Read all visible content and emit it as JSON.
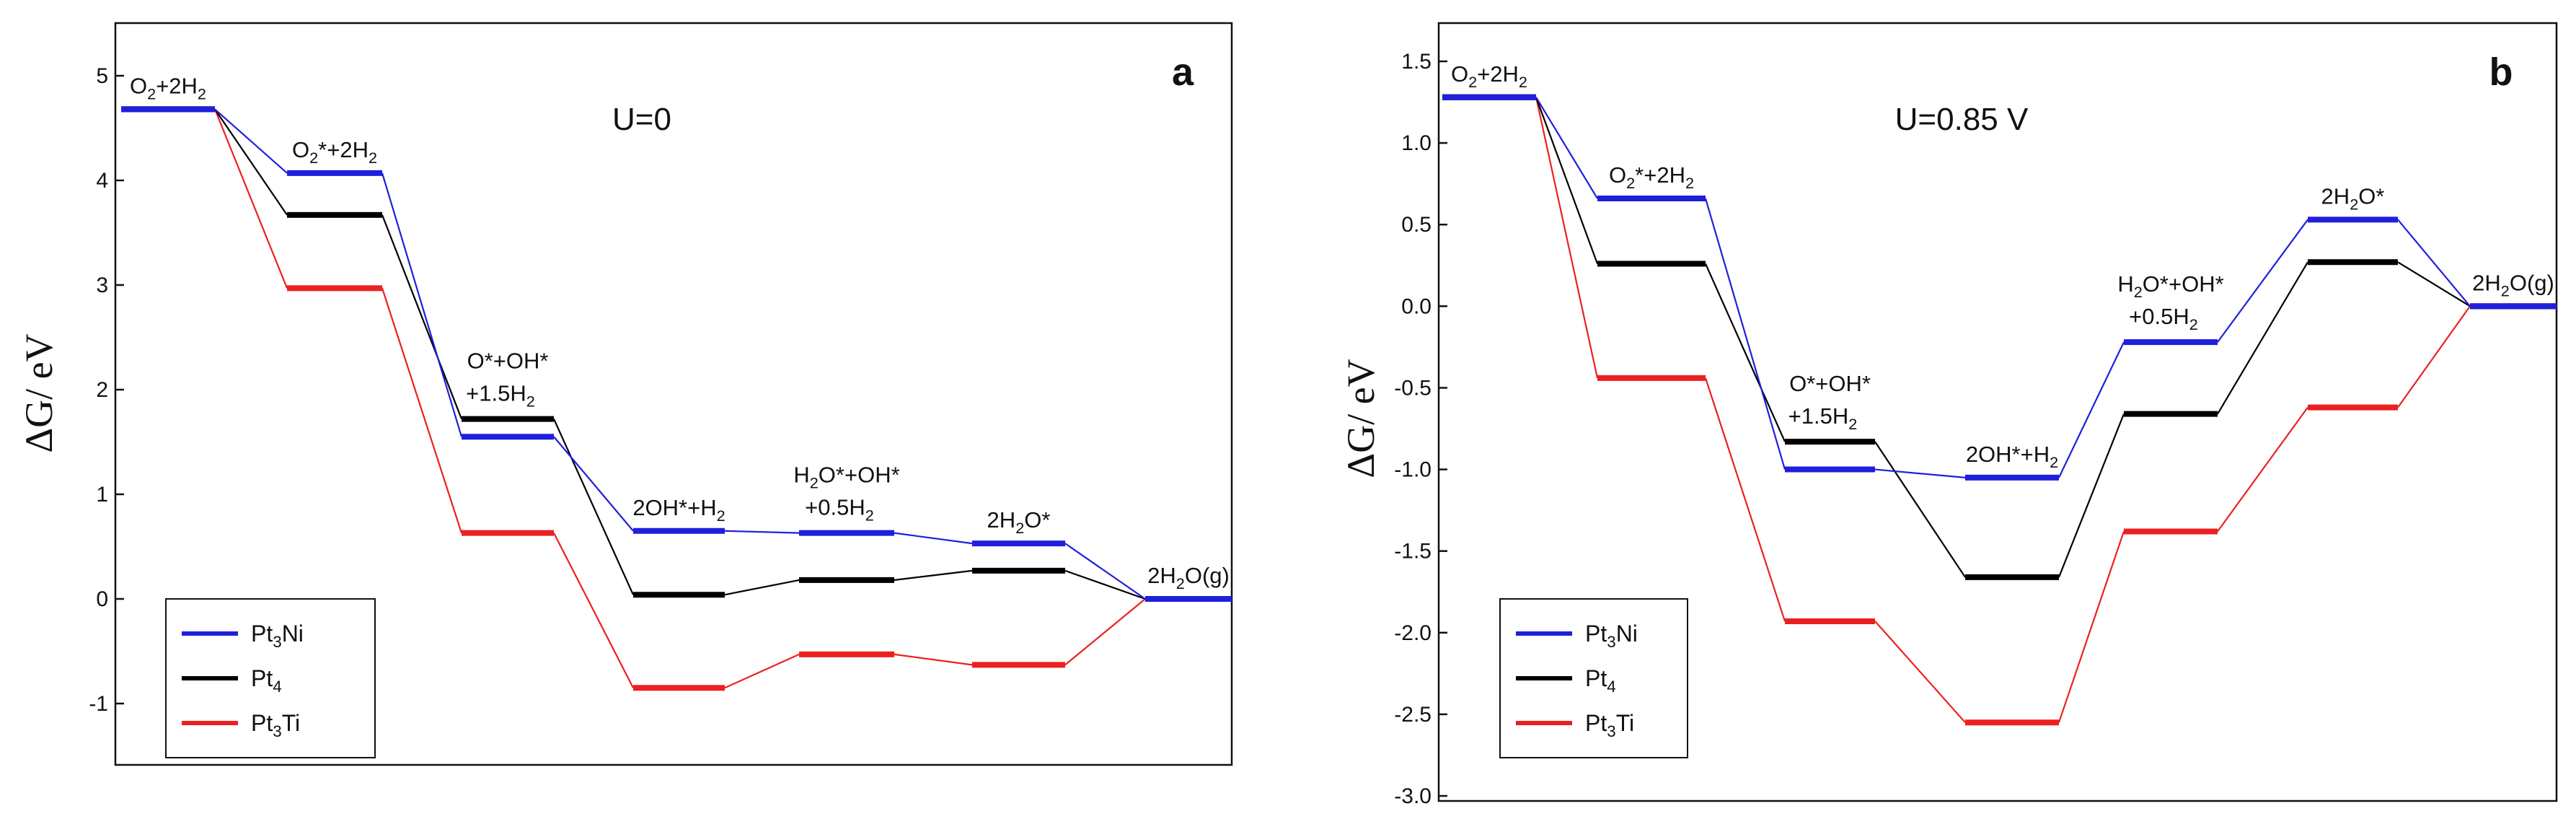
{
  "chart_data": [
    {
      "type": "line",
      "panel_label": "a",
      "condition": "U=0",
      "ylabel": "ΔG/ eV",
      "xlabel": "",
      "ylim": [
        -1.4,
        5.5
      ],
      "yticks": [
        5,
        4,
        3,
        2,
        1,
        0,
        -1
      ],
      "steps": [
        {
          "label": [
            [
              "O",
              ""
            ],
            [
              "2",
              "sub"
            ],
            [
              "+2H",
              ""
            ],
            [
              "2",
              "sub"
            ]
          ],
          "label_pos": "above"
        },
        {
          "label": [
            [
              "O",
              ""
            ],
            [
              "2",
              "sub"
            ],
            [
              "*+2H",
              ""
            ],
            [
              "2",
              "sub"
            ]
          ],
          "label_pos": "above"
        },
        {
          "label": [
            [
              "O*+OH*",
              ""
            ]
          ],
          "label2": [
            [
              "+1.5H",
              ""
            ],
            [
              "2",
              "sub"
            ]
          ],
          "label_pos": "above"
        },
        {
          "label": [
            [
              "2OH*+H",
              ""
            ],
            [
              "2",
              "sub"
            ]
          ],
          "label_pos": "above"
        },
        {
          "label": [
            [
              "H",
              ""
            ],
            [
              "2",
              "sub"
            ],
            [
              "O*+OH*",
              ""
            ]
          ],
          "label2": [
            [
              "+0.5H",
              ""
            ],
            [
              "2",
              "sub"
            ]
          ],
          "label_pos": "above"
        },
        {
          "label": [
            [
              "2H",
              ""
            ],
            [
              "2",
              "sub"
            ],
            [
              "O*",
              ""
            ]
          ],
          "label_pos": "above"
        },
        {
          "label": [
            [
              "2H",
              ""
            ],
            [
              "2",
              "sub"
            ],
            [
              "O(g)",
              ""
            ]
          ],
          "label_pos": "above"
        }
      ],
      "series": [
        {
          "name": "Pt3Ni",
          "color": "#1f1fdc",
          "values": [
            4.68,
            4.07,
            1.55,
            0.65,
            0.63,
            0.53,
            0.0
          ]
        },
        {
          "name": "Pt4",
          "color": "#000000",
          "values": [
            4.68,
            3.67,
            1.72,
            0.04,
            0.18,
            0.27,
            0.0
          ]
        },
        {
          "name": "Pt3Ti",
          "color": "#ec2020",
          "values": [
            4.68,
            2.97,
            0.63,
            -0.85,
            -0.53,
            -0.63,
            0.0
          ]
        }
      ],
      "legend": [
        {
          "base": "Pt",
          "sub": "3",
          "tail": "Ni",
          "color": "#1f1fdc"
        },
        {
          "base": "Pt",
          "sub": "4",
          "tail": "",
          "color": "#000000"
        },
        {
          "base": "Pt",
          "sub": "3",
          "tail": "Ti",
          "color": "#ec2020"
        }
      ],
      "legend_position": "bottom-left"
    },
    {
      "type": "line",
      "panel_label": "b",
      "condition": "U=0.85 V",
      "ylabel": "ΔG/ eV",
      "xlabel": "",
      "ylim": [
        -3.0,
        1.75
      ],
      "yticks": [
        1.5,
        1.0,
        0.5,
        0.0,
        -0.5,
        -1.0,
        -1.5,
        -2.0,
        -2.5,
        -3.0
      ],
      "ytick_labels": [
        "1.5",
        "1.0",
        "0.5",
        "0.0",
        "-0.5",
        "-1.0",
        "-1.5",
        "-2.0",
        "-2.5",
        "-3.0"
      ],
      "steps": [
        {
          "label": [
            [
              "O",
              ""
            ],
            [
              "2",
              "sub"
            ],
            [
              "+2H",
              ""
            ],
            [
              "2",
              "sub"
            ]
          ]
        },
        {
          "label": [
            [
              "O",
              ""
            ],
            [
              "2",
              "sub"
            ],
            [
              "*+2H",
              ""
            ],
            [
              "2",
              "sub"
            ]
          ]
        },
        {
          "label": [
            [
              "O*+OH*",
              ""
            ]
          ],
          "label2": [
            [
              "+1.5H",
              ""
            ],
            [
              "2",
              "sub"
            ]
          ]
        },
        {
          "label": [
            [
              "2OH*+H",
              ""
            ],
            [
              "2",
              "sub"
            ]
          ]
        },
        {
          "label": [
            [
              "H",
              ""
            ],
            [
              "2",
              "sub"
            ],
            [
              "O*+OH*",
              ""
            ]
          ],
          "label2": [
            [
              "+0.5H",
              ""
            ],
            [
              "2",
              "sub"
            ]
          ]
        },
        {
          "label": [
            [
              "2H",
              ""
            ],
            [
              "2",
              "sub"
            ],
            [
              "O*",
              ""
            ]
          ]
        },
        {
          "label": [
            [
              "2H",
              ""
            ],
            [
              "2",
              "sub"
            ],
            [
              "O(g)",
              ""
            ]
          ]
        }
      ],
      "series": [
        {
          "name": "Pt3Ni",
          "color": "#1f1fdc",
          "values": [
            1.28,
            0.66,
            -1.0,
            -1.05,
            -0.22,
            0.53,
            0.0
          ]
        },
        {
          "name": "Pt4",
          "color": "#000000",
          "values": [
            1.28,
            0.26,
            -0.83,
            -1.66,
            -0.66,
            0.27,
            0.0
          ]
        },
        {
          "name": "Pt3Ti",
          "color": "#ec2020",
          "values": [
            1.28,
            -0.44,
            -1.93,
            -2.55,
            -1.38,
            -0.62,
            0.0
          ]
        }
      ],
      "legend": [
        {
          "base": "Pt",
          "sub": "3",
          "tail": "Ni",
          "color": "#1f1fdc"
        },
        {
          "base": "Pt",
          "sub": "4",
          "tail": "",
          "color": "#000000"
        },
        {
          "base": "Pt",
          "sub": "3",
          "tail": "Ti",
          "color": "#ec2020"
        }
      ],
      "legend_position": "bottom-left"
    }
  ]
}
